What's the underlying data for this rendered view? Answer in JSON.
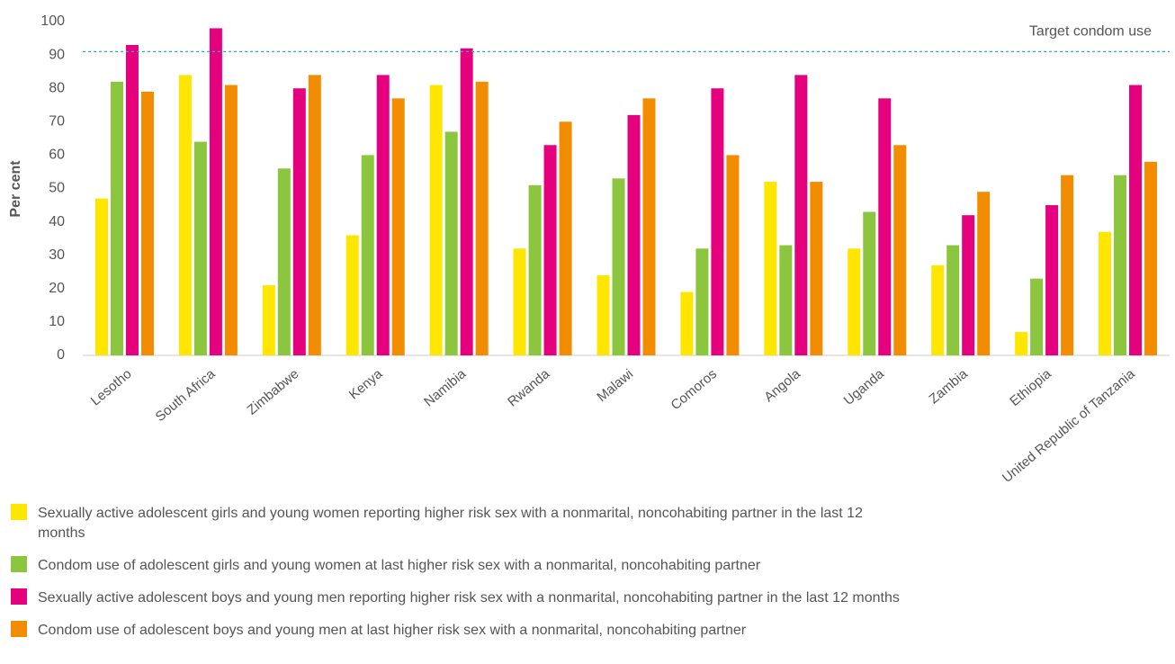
{
  "chart_data": {
    "type": "bar",
    "y_label": "Per cent",
    "categories": [
      "Lesotho",
      "South Africa",
      "Zimbabwe",
      "Kenya",
      "Namibia",
      "Rwanda",
      "Malawi",
      "Comoros",
      "Angola",
      "Uganda",
      "Zambia",
      "Ethiopia",
      "United Republic of Tanzania"
    ],
    "series": [
      {
        "name": "Sexually active adolescent girls and young women reporting higher risk sex with a nonmarital, noncohabiting partner in the last 12 months",
        "color": "#ffe600",
        "values": [
          47,
          84,
          21,
          36,
          81,
          32,
          24,
          19,
          52,
          32,
          27,
          7,
          37
        ]
      },
      {
        "name": "Condom use of adolescent girls and young women at last higher risk sex with a nonmarital, noncohabiting partner",
        "color": "#8cc63f",
        "values": [
          82,
          64,
          56,
          60,
          67,
          51,
          53,
          32,
          33,
          43,
          33,
          23,
          54
        ]
      },
      {
        "name": "Sexually active adolescent boys and young men reporting higher risk sex with a nonmarital, noncohabiting partner in the last 12 months",
        "color": "#e5007e",
        "values": [
          93,
          98,
          80,
          84,
          92,
          63,
          72,
          80,
          84,
          77,
          42,
          45,
          81
        ]
      },
      {
        "name": "Condom use of adolescent boys and young men at last higher risk sex with a nonmarital, noncohabiting partner",
        "color": "#f28c00",
        "values": [
          79,
          81,
          84,
          77,
          82,
          70,
          77,
          60,
          52,
          63,
          49,
          54,
          58
        ]
      }
    ],
    "target": {
      "label": "Target condom use",
      "value": 91,
      "color": "#2aa7d6"
    },
    "ylim": [
      0,
      100
    ],
    "yticks": [
      0,
      10,
      20,
      30,
      40,
      50,
      60,
      70,
      80,
      90,
      100
    ],
    "grid": false
  }
}
